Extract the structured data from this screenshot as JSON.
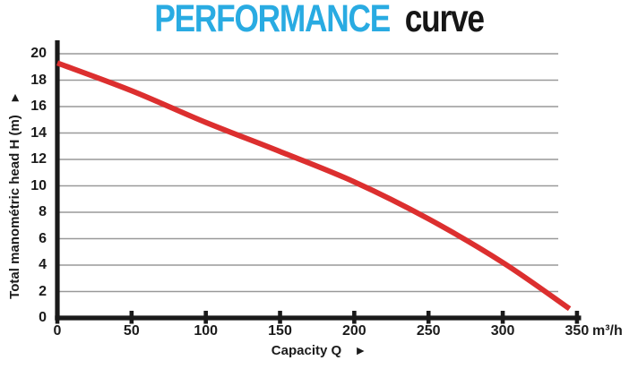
{
  "title": {
    "highlight": "PERFORMANCE",
    "rest": "curve"
  },
  "colors": {
    "title_blue": "#29abe2",
    "title_dark": "#161616",
    "curve_red": "#dc2f2f",
    "grid_gray": "#999999",
    "axis_black": "#1a1a1a",
    "label_dark": "#1b1b1b"
  },
  "arrows": {
    "x_right": "►",
    "y_up": "►"
  },
  "chart_data": {
    "type": "line",
    "title": "PERFORMANCE curve",
    "xlabel": "Capacity Q",
    "ylabel": "Total manométric head H (m)",
    "x_unit": "m³/h",
    "xlim": [
      0,
      350
    ],
    "ylim": [
      0,
      20
    ],
    "x_ticks": [
      0,
      50,
      100,
      150,
      200,
      250,
      300,
      350
    ],
    "y_ticks": [
      0,
      2,
      4,
      6,
      8,
      10,
      12,
      14,
      16,
      18,
      20
    ],
    "grid": "horizontal-only",
    "legend": "none",
    "series": [
      {
        "name": "head-capacity performance curve",
        "color": "#dc2f2f",
        "x": [
          0,
          50,
          100,
          150,
          200,
          250,
          300,
          345
        ],
        "y": [
          19.3,
          17.2,
          14.8,
          12.6,
          10.3,
          7.5,
          4.2,
          0.7
        ]
      }
    ]
  }
}
